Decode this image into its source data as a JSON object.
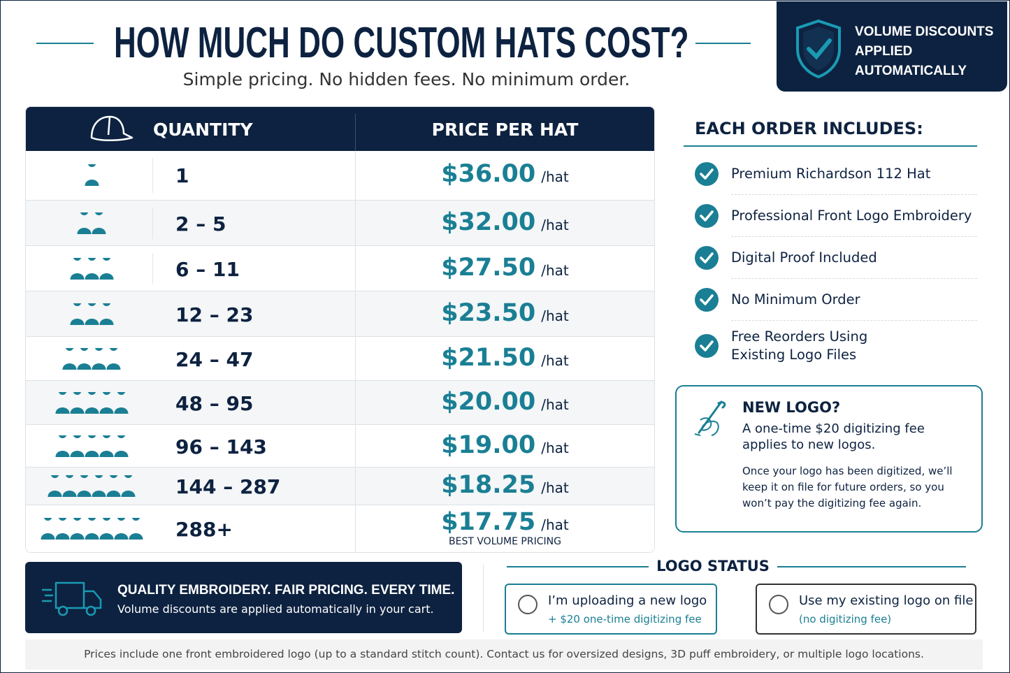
{
  "header": {
    "title": "HOW MUCH DO CUSTOM HATS COST?",
    "subtitle": "Simple pricing. No hidden fees. No minimum order."
  },
  "badge": {
    "text": "VOLUME DISCOUNTS APPLIED AUTOMATICALLY"
  },
  "table": {
    "headers": [
      "QUANTITY",
      "PRICE PER HAT"
    ],
    "rows": [
      {
        "quantity": "1",
        "price": "$36.00",
        "unit": "/hat"
      },
      {
        "quantity": "2 – 5",
        "price": "$32.00",
        "unit": "/hat"
      },
      {
        "quantity": "6 – 11",
        "price": "$27.50",
        "unit": "/hat"
      },
      {
        "quantity": "12 – 23",
        "price": "$23.50",
        "unit": "/hat"
      },
      {
        "quantity": "24 – 47",
        "price": "$21.50",
        "unit": "/hat"
      },
      {
        "quantity": "48 – 95",
        "price": "$20.00",
        "unit": "/hat"
      },
      {
        "quantity": "96 – 143",
        "price": "$19.00",
        "unit": "/hat"
      },
      {
        "quantity": "144 – 287",
        "price": "$18.25",
        "unit": "/hat"
      },
      {
        "quantity": "288+",
        "price": "$17.75",
        "unit": "/hat",
        "note": "BEST VOLUME PRICING"
      }
    ]
  },
  "includes": {
    "title": "EACH ORDER INCLUDES:",
    "items": [
      "Premium Richardson 112 Hat",
      "Professional Front Logo Embroidery",
      "Digital Proof Included",
      "No Minimum Order",
      "Free Reorders Using Existing Logo Files"
    ]
  },
  "new_logo": {
    "title": "NEW LOGO?",
    "text": "A one-time $20 digitizing fee applies to new logos.",
    "note": "Once your logo has been digitized, we’ll keep it on file for future orders, so you won’t pay the digitizing fee again."
  },
  "banner": {
    "title": "QUALITY EMBROIDERY. FAIR PRICING.  EVERY TIME.",
    "text": "Volume discounts are applied automatically in your cart."
  },
  "logo_status": {
    "title": "LOGO STATUS",
    "options": [
      {
        "label": "I’m uploading a new logo",
        "sub": "+ $20 one-time digitizing fee"
      },
      {
        "label": "Use my existing logo on file",
        "sub": "(no digitizing fee)"
      }
    ]
  },
  "footer": {
    "note": "Prices include one front embroidered logo (up to a standard stitch count). Contact us for oversized designs, 3D puff embroidery, or multiple logo locations."
  }
}
